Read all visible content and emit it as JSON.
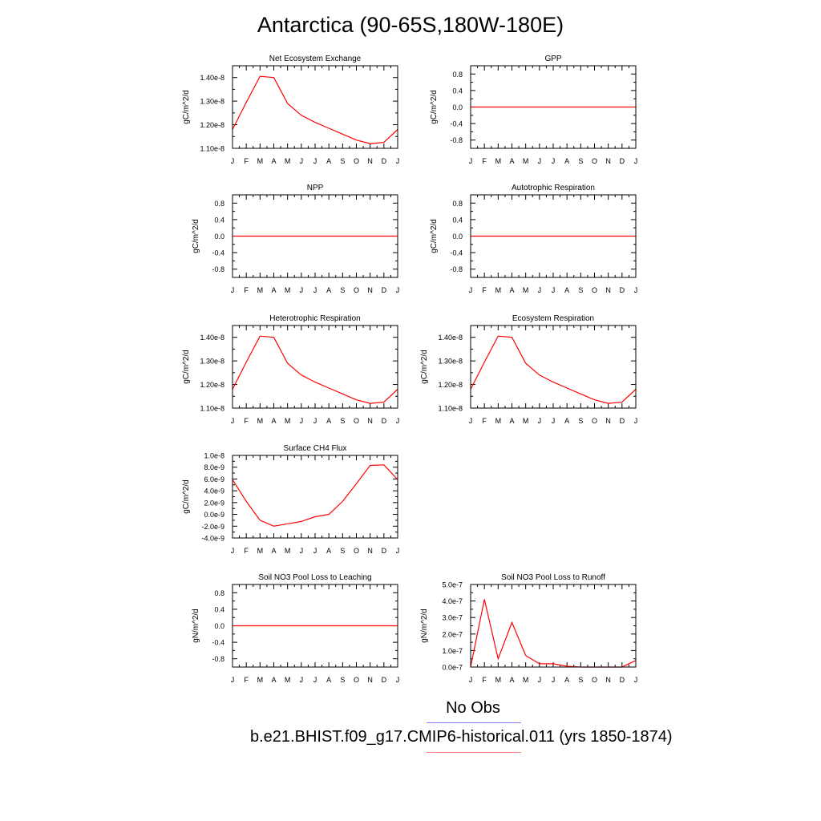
{
  "page": {
    "title": "Antarctica (90-65S,180W-180E)"
  },
  "legend": [
    {
      "label": "No Obs",
      "color": "#8080ff"
    },
    {
      "label": "b.e21.BHIST.f09_g17.CMIP6-historical.011 (yrs 1850-1874)",
      "color": "#ff8080"
    }
  ],
  "chart_data": [
    {
      "type": "line",
      "title": "Net Ecosystem Exchange",
      "ylabel": "gC/m^2/d",
      "x": [
        "J",
        "F",
        "M",
        "A",
        "M",
        "J",
        "J",
        "A",
        "S",
        "O",
        "N",
        "D",
        "J"
      ],
      "ylim": [
        1.1e-08,
        1.45e-08
      ],
      "yticks": [
        1.1e-08,
        1.2e-08,
        1.3e-08,
        1.4e-08
      ],
      "yticklabels": [
        "1.10e-8",
        "1.20e-8",
        "1.30e-8",
        "1.40e-8"
      ],
      "series": [
        {
          "color": "#ff0000",
          "values": [
            1.18e-08,
            1.295e-08,
            1.405e-08,
            1.4e-08,
            1.29e-08,
            1.24e-08,
            1.21e-08,
            1.185e-08,
            1.16e-08,
            1.135e-08,
            1.12e-08,
            1.125e-08,
            1.18e-08
          ]
        }
      ]
    },
    {
      "type": "line",
      "title": "GPP",
      "ylabel": "gC/m^2/d",
      "x": [
        "J",
        "F",
        "M",
        "A",
        "M",
        "J",
        "J",
        "A",
        "S",
        "O",
        "N",
        "D",
        "J"
      ],
      "ylim": [
        -1,
        1
      ],
      "yticks": [
        -0.8,
        -0.4,
        0,
        0.4,
        0.8
      ],
      "yticklabels": [
        "-0.8",
        "-0.4",
        "0.0",
        "0.4",
        "0.8"
      ],
      "series": [
        {
          "color": "#ff0000",
          "values": [
            0,
            0,
            0,
            0,
            0,
            0,
            0,
            0,
            0,
            0,
            0,
            0,
            0
          ]
        }
      ]
    },
    {
      "type": "line",
      "title": "NPP",
      "ylabel": "gC/m^2/d",
      "x": [
        "J",
        "F",
        "M",
        "A",
        "M",
        "J",
        "J",
        "A",
        "S",
        "O",
        "N",
        "D",
        "J"
      ],
      "ylim": [
        -1,
        1
      ],
      "yticks": [
        -0.8,
        -0.4,
        0,
        0.4,
        0.8
      ],
      "yticklabels": [
        "-0.8",
        "-0.4",
        "0.0",
        "0.4",
        "0.8"
      ],
      "series": [
        {
          "color": "#ff0000",
          "values": [
            0,
            0,
            0,
            0,
            0,
            0,
            0,
            0,
            0,
            0,
            0,
            0,
            0
          ]
        }
      ]
    },
    {
      "type": "line",
      "title": "Autotrophic Respiration",
      "ylabel": "gC/m^2/d",
      "x": [
        "J",
        "F",
        "M",
        "A",
        "M",
        "J",
        "J",
        "A",
        "S",
        "O",
        "N",
        "D",
        "J"
      ],
      "ylim": [
        -1,
        1
      ],
      "yticks": [
        -0.8,
        -0.4,
        0,
        0.4,
        0.8
      ],
      "yticklabels": [
        "-0.8",
        "-0.4",
        "0.0",
        "0.4",
        "0.8"
      ],
      "series": [
        {
          "color": "#ff0000",
          "values": [
            0,
            0,
            0,
            0,
            0,
            0,
            0,
            0,
            0,
            0,
            0,
            0,
            0
          ]
        }
      ]
    },
    {
      "type": "line",
      "title": "Heterotrophic Respiration",
      "ylabel": "gC/m^2/d",
      "x": [
        "J",
        "F",
        "M",
        "A",
        "M",
        "J",
        "J",
        "A",
        "S",
        "O",
        "N",
        "D",
        "J"
      ],
      "ylim": [
        1.1e-08,
        1.45e-08
      ],
      "yticks": [
        1.1e-08,
        1.2e-08,
        1.3e-08,
        1.4e-08
      ],
      "yticklabels": [
        "1.10e-8",
        "1.20e-8",
        "1.30e-8",
        "1.40e-8"
      ],
      "series": [
        {
          "color": "#ff0000",
          "values": [
            1.18e-08,
            1.295e-08,
            1.405e-08,
            1.4e-08,
            1.29e-08,
            1.24e-08,
            1.21e-08,
            1.185e-08,
            1.16e-08,
            1.135e-08,
            1.12e-08,
            1.125e-08,
            1.18e-08
          ]
        }
      ]
    },
    {
      "type": "line",
      "title": "Ecosystem Respiration",
      "ylabel": "gC/m^2/d",
      "x": [
        "J",
        "F",
        "M",
        "A",
        "M",
        "J",
        "J",
        "A",
        "S",
        "O",
        "N",
        "D",
        "J"
      ],
      "ylim": [
        1.1e-08,
        1.45e-08
      ],
      "yticks": [
        1.1e-08,
        1.2e-08,
        1.3e-08,
        1.4e-08
      ],
      "yticklabels": [
        "1.10e-8",
        "1.20e-8",
        "1.30e-8",
        "1.40e-8"
      ],
      "series": [
        {
          "color": "#ff0000",
          "values": [
            1.18e-08,
            1.295e-08,
            1.405e-08,
            1.4e-08,
            1.29e-08,
            1.24e-08,
            1.21e-08,
            1.185e-08,
            1.16e-08,
            1.135e-08,
            1.12e-08,
            1.125e-08,
            1.18e-08
          ]
        }
      ]
    },
    {
      "type": "line",
      "title": "Surface CH4 Flux",
      "ylabel": "gC/m^2/d",
      "x": [
        "J",
        "F",
        "M",
        "A",
        "M",
        "J",
        "J",
        "A",
        "S",
        "O",
        "N",
        "D",
        "J"
      ],
      "ylim": [
        -4e-09,
        1e-08
      ],
      "yticks": [
        -4e-09,
        -2e-09,
        0,
        2e-09,
        4e-09,
        6e-09,
        8e-09,
        1e-08
      ],
      "yticklabels": [
        "-4.0e-9",
        "-2.0e-9",
        "0.0e-9",
        "2.0e-9",
        "4.0e-9",
        "6.0e-9",
        "8.0e-9",
        "1.0e-8"
      ],
      "series": [
        {
          "color": "#ff0000",
          "values": [
            5.9e-09,
            2.2e-09,
            -1e-09,
            -2e-09,
            -1.6e-09,
            -1.2e-09,
            -4e-10,
            0.0,
            2.2e-09,
            5.2e-09,
            8.3e-09,
            8.4e-09,
            5.9e-09
          ]
        }
      ]
    },
    {
      "type": "line",
      "title": "Soil NO3 Pool Loss to Leaching",
      "ylabel": "gN/m^2/d",
      "x": [
        "J",
        "F",
        "M",
        "A",
        "M",
        "J",
        "J",
        "A",
        "S",
        "O",
        "N",
        "D",
        "J"
      ],
      "ylim": [
        -1,
        1
      ],
      "yticks": [
        -0.8,
        -0.4,
        0,
        0.4,
        0.8
      ],
      "yticklabels": [
        "-0.8",
        "-0.4",
        "0.0",
        "0.4",
        "0.8"
      ],
      "series": [
        {
          "color": "#ff0000",
          "values": [
            0,
            0,
            0,
            0,
            0,
            0,
            0,
            0,
            0,
            0,
            0,
            0,
            0
          ]
        }
      ]
    },
    {
      "type": "line",
      "title": "Soil NO3 Pool Loss to Runoff",
      "ylabel": "gN/m^2/d",
      "x": [
        "J",
        "F",
        "M",
        "A",
        "M",
        "J",
        "J",
        "A",
        "S",
        "O",
        "N",
        "D",
        "J"
      ],
      "ylim": [
        0,
        5e-07
      ],
      "yticks": [
        0,
        1e-07,
        2e-07,
        3e-07,
        4e-07,
        5e-07
      ],
      "yticklabels": [
        "0.0e-7",
        "1.0e-7",
        "2.0e-7",
        "3.0e-7",
        "4.0e-7",
        "5.0e-7"
      ],
      "series": [
        {
          "color": "#ff0000",
          "values": [
            2e-09,
            4.1e-07,
            5e-08,
            2.7e-07,
            7e-08,
            2e-08,
            2e-08,
            5e-09,
            0,
            0,
            0,
            0,
            4e-08
          ]
        }
      ]
    }
  ]
}
